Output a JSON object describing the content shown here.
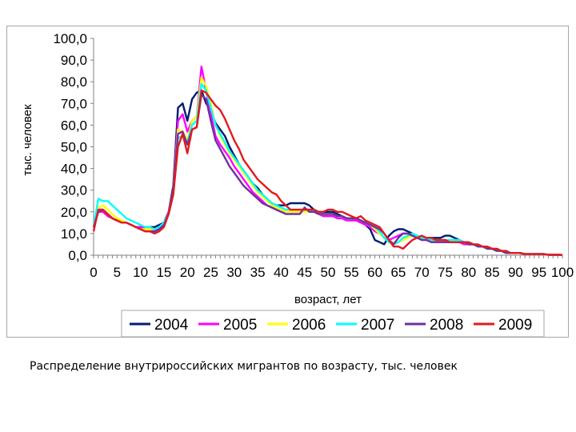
{
  "chart_data": {
    "type": "line",
    "title": "",
    "xlabel": "возраст, лет",
    "ylabel": "тыс. человек",
    "xlim": [
      0,
      100
    ],
    "ylim": [
      0,
      100
    ],
    "x_ticks": [
      "0",
      "5",
      "10",
      "15",
      "20",
      "25",
      "30",
      "35",
      "40",
      "45",
      "50",
      "55",
      "60",
      "65",
      "70",
      "75",
      "80",
      "85",
      "90",
      "95",
      "100"
    ],
    "y_ticks": [
      "0,0",
      "10,0",
      "20,0",
      "30,0",
      "40,0",
      "50,0",
      "60,0",
      "70,0",
      "80,0",
      "90,0",
      "100,0"
    ],
    "grid": false,
    "legend_position": "bottom",
    "x": [
      0,
      1,
      2,
      3,
      4,
      5,
      6,
      7,
      8,
      9,
      10,
      11,
      12,
      13,
      14,
      15,
      16,
      17,
      18,
      19,
      20,
      21,
      22,
      23,
      24,
      25,
      26,
      27,
      28,
      29,
      30,
      31,
      32,
      33,
      34,
      35,
      36,
      37,
      38,
      39,
      40,
      41,
      42,
      43,
      44,
      45,
      46,
      47,
      48,
      49,
      50,
      51,
      52,
      53,
      54,
      55,
      56,
      57,
      58,
      59,
      60,
      61,
      62,
      63,
      64,
      65,
      66,
      67,
      68,
      69,
      70,
      71,
      72,
      73,
      74,
      75,
      76,
      77,
      78,
      79,
      80,
      81,
      82,
      83,
      84,
      85,
      86,
      87,
      88,
      89,
      90,
      91,
      92,
      93,
      94,
      95,
      96,
      97,
      98,
      99,
      100
    ],
    "series": [
      {
        "name": "2004",
        "color": "#001c6e",
        "values": [
          13,
          21,
          21,
          19,
          17,
          16,
          15,
          15,
          14,
          13,
          13,
          13,
          13,
          13,
          14,
          15,
          20,
          32,
          68,
          70,
          62,
          72,
          75,
          76,
          70,
          67,
          61,
          58,
          55,
          50,
          46,
          42,
          39,
          36,
          33,
          31,
          28,
          26,
          24,
          23,
          23,
          23,
          24,
          24,
          24,
          24,
          23,
          21,
          20,
          20,
          20,
          20,
          19,
          18,
          17,
          17,
          16,
          16,
          14,
          12,
          7,
          6,
          5,
          9,
          11,
          12,
          12,
          11,
          10,
          9,
          8,
          8,
          8,
          8,
          8,
          9,
          9,
          8,
          7,
          6,
          5,
          5,
          4,
          4,
          3,
          3,
          2,
          2,
          1,
          1,
          1,
          1,
          0.5,
          0.5,
          0.5,
          0.5,
          0.5,
          0.2,
          0.2,
          0.2,
          0.1
        ]
      },
      {
        "name": "2005",
        "color": "#ff00ff",
        "values": [
          13,
          20,
          20,
          18,
          17,
          16,
          15,
          15,
          14,
          13,
          13,
          12,
          12,
          11,
          12,
          14,
          20,
          30,
          62,
          65,
          57,
          62,
          64,
          87,
          76,
          65,
          55,
          51,
          48,
          45,
          41,
          38,
          35,
          32,
          29,
          27,
          25,
          23,
          22,
          21,
          20,
          20,
          20,
          20,
          20,
          20,
          20,
          20,
          19,
          18,
          18,
          18,
          17,
          17,
          16,
          16,
          16,
          15,
          14,
          13,
          11,
          10,
          8,
          7,
          8,
          9,
          10,
          10,
          9,
          9,
          8,
          7,
          7,
          6,
          6,
          6,
          6,
          6,
          6,
          5,
          5,
          5,
          4,
          4,
          3,
          3,
          2,
          2,
          1,
          1,
          1,
          1,
          0.5,
          0.5,
          0.5,
          0.5,
          0.5,
          0.2,
          0.2,
          0.2,
          0.1
        ]
      },
      {
        "name": "2006",
        "color": "#ffff00",
        "values": [
          13,
          22,
          23,
          21,
          19,
          17,
          16,
          15,
          14,
          13,
          12,
          12,
          12,
          12,
          12,
          14,
          19,
          30,
          58,
          57,
          53,
          62,
          64,
          82,
          78,
          70,
          60,
          55,
          51,
          47,
          44,
          41,
          38,
          35,
          32,
          29,
          27,
          25,
          23,
          22,
          21,
          20,
          20,
          20,
          20,
          20,
          20,
          20,
          19,
          19,
          19,
          19,
          18,
          18,
          17,
          17,
          17,
          16,
          15,
          14,
          12,
          10,
          8,
          6,
          6,
          6,
          7,
          8,
          9,
          9,
          8,
          7,
          7,
          7,
          7,
          7,
          7,
          7,
          6,
          6,
          5,
          5,
          4,
          4,
          3,
          3,
          2,
          2,
          1,
          1,
          1,
          1,
          0.5,
          0.5,
          0.5,
          0.5,
          0.5,
          0.2,
          0.2,
          0.2,
          0.1
        ]
      },
      {
        "name": "2007",
        "color": "#00ffff",
        "values": [
          13,
          26,
          25,
          25,
          23,
          21,
          19,
          17,
          16,
          15,
          14,
          13,
          13,
          12,
          13,
          15,
          19,
          28,
          54,
          55,
          52,
          60,
          62,
          79,
          76,
          68,
          60,
          56,
          52,
          48,
          45,
          42,
          39,
          36,
          33,
          30,
          28,
          26,
          24,
          23,
          22,
          21,
          21,
          21,
          21,
          21,
          21,
          20,
          20,
          19,
          19,
          19,
          18,
          18,
          17,
          17,
          17,
          16,
          15,
          14,
          13,
          11,
          8,
          6,
          5,
          6,
          8,
          9,
          10,
          9,
          8,
          8,
          7,
          7,
          7,
          7,
          7,
          7,
          7,
          6,
          6,
          5,
          4,
          4,
          3,
          3,
          2,
          2,
          1,
          1,
          1,
          1,
          0.5,
          0.5,
          0.5,
          0.5,
          0.5,
          0.2,
          0.2,
          0.2,
          0.1
        ]
      },
      {
        "name": "2008",
        "color": "#7030a0",
        "values": [
          13,
          20,
          21,
          19,
          17,
          16,
          15,
          15,
          14,
          13,
          12,
          11,
          11,
          11,
          12,
          14,
          19,
          30,
          56,
          57,
          51,
          58,
          59,
          74,
          72,
          62,
          53,
          49,
          45,
          41,
          38,
          35,
          32,
          30,
          28,
          26,
          24,
          23,
          22,
          21,
          20,
          19,
          19,
          19,
          19,
          22,
          20,
          20,
          19,
          19,
          19,
          19,
          18,
          18,
          17,
          17,
          17,
          16,
          15,
          14,
          13,
          12,
          10,
          7,
          5,
          8,
          10,
          10,
          9,
          8,
          7,
          7,
          6,
          6,
          6,
          6,
          6,
          6,
          6,
          6,
          5,
          5,
          4,
          4,
          3,
          3,
          2,
          2,
          1,
          1,
          1,
          1,
          0.5,
          0.5,
          0.5,
          0.5,
          0.5,
          0.2,
          0.2,
          0.2,
          0.1
        ]
      },
      {
        "name": "2009",
        "color": "#e31a1c",
        "values": [
          11,
          21,
          21,
          19,
          17,
          16,
          15,
          15,
          14,
          13,
          12,
          11,
          11,
          10,
          11,
          13,
          19,
          28,
          50,
          56,
          47,
          58,
          59,
          76,
          75,
          72,
          69,
          67,
          63,
          58,
          53,
          49,
          44,
          41,
          38,
          35,
          33,
          31,
          29,
          28,
          25,
          23,
          21,
          21,
          21,
          21,
          21,
          21,
          20,
          20,
          21,
          21,
          20,
          20,
          19,
          18,
          17,
          18,
          16,
          15,
          14,
          13,
          10,
          7,
          4,
          4,
          3,
          5,
          7,
          8,
          9,
          8,
          8,
          7,
          7,
          7,
          6,
          6,
          6,
          6,
          6,
          5,
          5,
          4,
          4,
          3,
          3,
          2,
          2,
          1,
          1,
          1,
          0.5,
          0.5,
          0.5,
          0.5,
          0.5,
          0.2,
          0.2,
          0.2,
          0.1
        ]
      }
    ]
  },
  "caption": "Распределение внутрироссийских мигрантов по возрасту, тыс. человек"
}
